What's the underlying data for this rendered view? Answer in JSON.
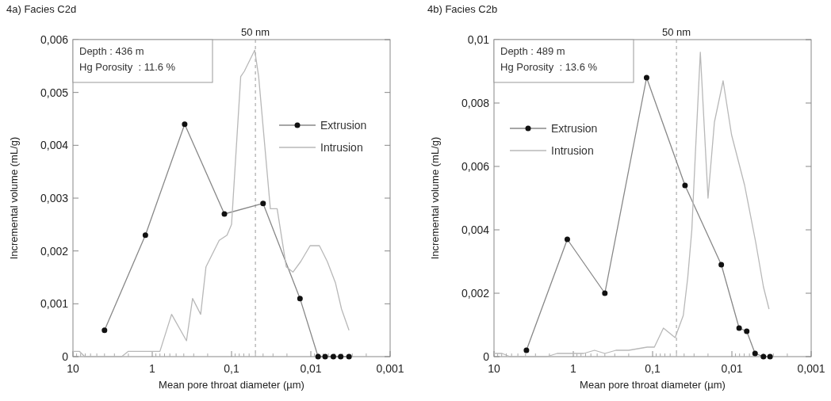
{
  "chart_data": [
    {
      "type": "line",
      "title": "4a)  Facies C2d",
      "xlabel": "Mean pore throat diameter (µm)",
      "ylabel": "Incremental volume (mL/g)",
      "log": "x",
      "xlim": [
        10,
        0.001
      ],
      "xticks": [
        {
          "value": 10,
          "label": "10"
        },
        {
          "value": 1,
          "label": "1"
        },
        {
          "value": 0.1,
          "label": "0,1"
        },
        {
          "value": 0.01,
          "label": "0,01"
        },
        {
          "value": 0.001,
          "label": "0,001"
        }
      ],
      "ylim": [
        0,
        0.006
      ],
      "yticks": [
        {
          "value": 0,
          "label": "0"
        },
        {
          "value": 0.001,
          "label": "0,001"
        },
        {
          "value": 0.002,
          "label": "0,002"
        },
        {
          "value": 0.003,
          "label": "0,003"
        },
        {
          "value": 0.004,
          "label": "0,004"
        },
        {
          "value": 0.005,
          "label": "0,005"
        },
        {
          "value": 0.006,
          "label": "0,006"
        }
      ],
      "grid": false,
      "legend": "right",
      "annotations": [
        "Depth : 436 m",
        "Hg Porosity  : 11.6 %"
      ],
      "ref_lines": [
        {
          "axis": "x",
          "value": 0.05,
          "label": "50 nm",
          "line_style": "dashed",
          "color": "#999999"
        }
      ],
      "series": [
        {
          "name": "Extrusion",
          "color": "#888888",
          "marker": "circle",
          "x": [
            4.0,
            1.22,
            0.39,
            0.123,
            0.04,
            0.0137,
            0.0081,
            0.0066,
            0.0052,
            0.0042,
            0.0033
          ],
          "values": [
            0.0005,
            0.0023,
            0.0044,
            0.0027,
            0.0029,
            0.0011,
            0,
            0,
            0,
            0,
            0
          ]
        },
        {
          "name": "Intrusion",
          "color": "#b8b8b8",
          "marker": "none",
          "x": [
            10,
            8.3,
            7.1,
            2.43,
            2.0,
            0.8,
            0.57,
            0.37,
            0.31,
            0.245,
            0.21,
            0.143,
            0.114,
            0.1,
            0.0766,
            0.069,
            0.051,
            0.0455,
            0.0324,
            0.0266,
            0.0204,
            0.0168,
            0.0134,
            0.0102,
            0.0078,
            0.0062,
            0.0049,
            0.0041,
            0.0033
          ],
          "values": [
            0.0001,
            0.0001,
            0,
            0,
            0.0001,
            0.0001,
            0.0008,
            0.0003,
            0.0011,
            0.0008,
            0.0017,
            0.0022,
            0.0023,
            0.0025,
            0.0053,
            0.0054,
            0.0058,
            0.0053,
            0.0028,
            0.0028,
            0.0017,
            0.0016,
            0.0018,
            0.0021,
            0.0021,
            0.0018,
            0.0014,
            0.0009,
            0.0005
          ]
        }
      ]
    },
    {
      "type": "line",
      "title": "4b)  Facies C2b",
      "xlabel": "Mean pore throat diameter (µm)",
      "ylabel": "Incremental volume (mL/g)",
      "log": "x",
      "xlim": [
        10,
        0.001
      ],
      "xticks": [
        {
          "value": 10,
          "label": "10"
        },
        {
          "value": 1,
          "label": "1"
        },
        {
          "value": 0.1,
          "label": "0,1"
        },
        {
          "value": 0.01,
          "label": "0,01"
        },
        {
          "value": 0.001,
          "label": "0,001"
        }
      ],
      "ylim": [
        0,
        0.01
      ],
      "yticks": [
        {
          "value": 0,
          "label": "0"
        },
        {
          "value": 0.002,
          "label": "0,002"
        },
        {
          "value": 0.004,
          "label": "0,004"
        },
        {
          "value": 0.006,
          "label": "0,006"
        },
        {
          "value": 0.008,
          "label": "0,008"
        },
        {
          "value": 0.01,
          "label": "0,01"
        }
      ],
      "grid": false,
      "legend": "left",
      "annotations": [
        "Depth : 489 m",
        "Hg Porosity  : 13.6 %"
      ],
      "ref_lines": [
        {
          "axis": "x",
          "value": 0.05,
          "label": "50 nm",
          "line_style": "dashed",
          "color": "#999999"
        }
      ],
      "series": [
        {
          "name": "Extrusion",
          "color": "#888888",
          "marker": "circle",
          "x": [
            3.9,
            1.19,
            0.4,
            0.119,
            0.039,
            0.0136,
            0.0081,
            0.0065,
            0.0051,
            0.004,
            0.0033
          ],
          "values": [
            0.0002,
            0.0037,
            0.002,
            0.0088,
            0.0054,
            0.0029,
            0.0009,
            0.0008,
            0.0001,
            0,
            0
          ]
        },
        {
          "name": "Intrusion",
          "color": "#b8b8b8",
          "marker": "none",
          "x": [
            10,
            7.9,
            6.3,
            2.15,
            1.6,
            0.74,
            0.54,
            0.4,
            0.29,
            0.2,
            0.117,
            0.095,
            0.073,
            0.052,
            0.041,
            0.036,
            0.032,
            0.029,
            0.025,
            0.02,
            0.0166,
            0.0129,
            0.0101,
            0.0069,
            0.005,
            0.004,
            0.0034
          ],
          "values": [
            0.0001,
            0.0001,
            0,
            0,
            0.0001,
            0.0001,
            0.0002,
            0.0001,
            0.0002,
            0.0002,
            0.0003,
            0.0003,
            0.0009,
            0.0006,
            0.0013,
            0.0025,
            0.004,
            0.0063,
            0.0096,
            0.005,
            0.0074,
            0.0087,
            0.007,
            0.0054,
            0.0036,
            0.0022,
            0.0015
          ]
        }
      ]
    }
  ]
}
